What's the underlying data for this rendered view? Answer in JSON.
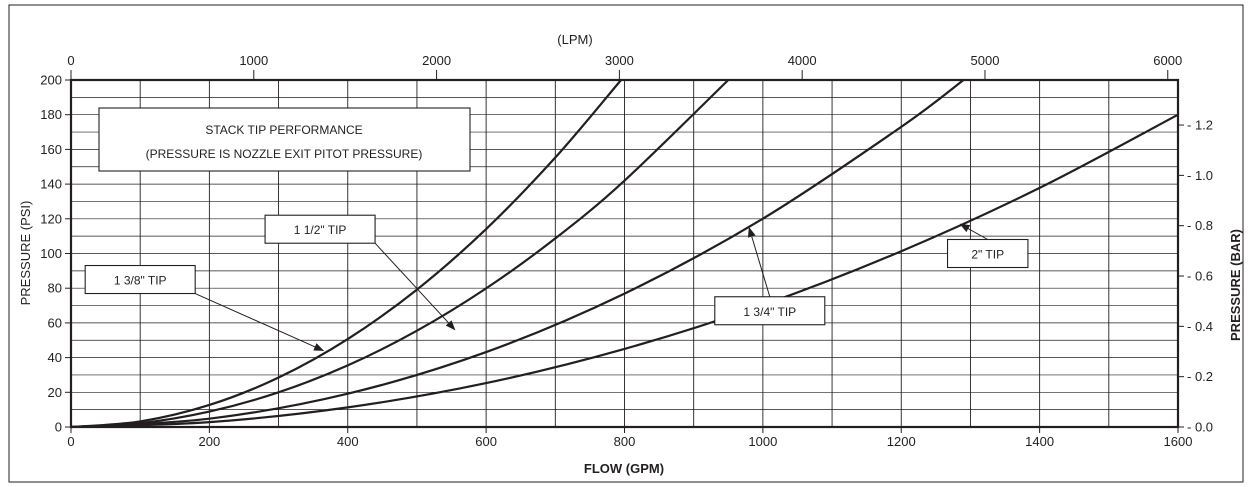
{
  "chart_data": {
    "type": "line",
    "title": "STACK TIP PERFORMANCE",
    "subtitle": "(PRESSURE IS NOZZLE EXIT PITOT PRESSURE)",
    "xlabel": "FLOW (GPM)",
    "ylabel": "PRESSURE (PSI)",
    "x2label": "(LPM)",
    "y2label": "PRESSURE (BAR)",
    "xlim": [
      0,
      1600
    ],
    "ylim": [
      0,
      200
    ],
    "x2lim": [
      0,
      6056
    ],
    "y2lim": [
      0,
      1.379
    ],
    "xticks": [
      "0",
      "200",
      "400",
      "600",
      "800",
      "1000",
      "1200",
      "1400",
      "1600"
    ],
    "xtick_values": [
      0,
      200,
      400,
      600,
      800,
      1000,
      1200,
      1400,
      1600
    ],
    "yticks": [
      "0",
      "20",
      "40",
      "60",
      "80",
      "100",
      "120",
      "140",
      "160",
      "180",
      "200"
    ],
    "ytick_values": [
      0,
      20,
      40,
      60,
      80,
      100,
      120,
      140,
      160,
      180,
      200
    ],
    "x2ticks": [
      "0",
      "1000",
      "2000",
      "3000",
      "4000",
      "5000",
      "6000"
    ],
    "x2tick_values": [
      0,
      1000,
      2000,
      3000,
      4000,
      5000,
      6000
    ],
    "y2ticks": [
      "0.0",
      "0.2",
      "0.4",
      "0.6",
      "0.8",
      "1.0",
      "1.2"
    ],
    "y2tick_values": [
      0.0,
      0.2,
      0.4,
      0.6,
      0.8,
      1.0,
      1.2
    ],
    "grid": true,
    "series": [
      {
        "name": "1 3/8\" TIP",
        "label_pos": [
          100,
          85
        ],
        "arrow_to": [
          365,
          44
        ],
        "x": [
          0,
          100,
          200,
          300,
          400,
          500,
          600,
          700,
          795
        ],
        "y": [
          0,
          3.2,
          12.7,
          28.5,
          50.7,
          79.2,
          114.1,
          155.3,
          200
        ]
      },
      {
        "name": "1 1/2\" TIP",
        "label_pos": [
          360,
          114
        ],
        "arrow_to": [
          555,
          56
        ],
        "x": [
          0,
          100,
          200,
          300,
          400,
          500,
          600,
          700,
          800,
          950
        ],
        "y": [
          0,
          2.2,
          8.9,
          20.0,
          35.5,
          55.5,
          79.9,
          108.7,
          142.0,
          200
        ]
      },
      {
        "name": "1 3/4\" TIP",
        "label_pos": [
          1010,
          67
        ],
        "arrow_to": [
          980,
          115
        ],
        "x": [
          0,
          200,
          400,
          600,
          800,
          1000,
          1200,
          1290
        ],
        "y": [
          0,
          4.8,
          19.2,
          43.2,
          76.9,
          120.1,
          173.0,
          200
        ]
      },
      {
        "name": "2\" TIP",
        "label_pos": [
          1325,
          100
        ],
        "arrow_to": [
          1285,
          117
        ],
        "x": [
          0,
          200,
          400,
          600,
          800,
          1000,
          1200,
          1400,
          1600
        ],
        "y": [
          0,
          2.8,
          11.3,
          25.3,
          45.0,
          70.3,
          101.3,
          137.8,
          180
        ]
      }
    ]
  }
}
